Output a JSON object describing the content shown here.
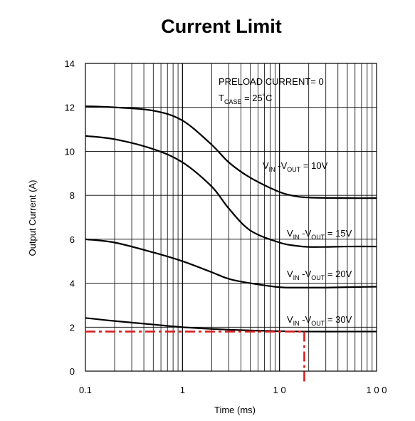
{
  "chart_data": {
    "type": "line",
    "title": "Current Limit",
    "xlabel": "Time  (ms)",
    "ylabel": "Output Current  (A)",
    "x_scale": "log",
    "xlim": [
      0.1,
      100
    ],
    "ylim": [
      0,
      14
    ],
    "grid": true,
    "x_ticks": [
      {
        "value": 0.1,
        "label": "0.1"
      },
      {
        "value": 1,
        "label": "1"
      },
      {
        "value": 10,
        "label": "1 0"
      },
      {
        "value": 100,
        "label": "1 0 0"
      }
    ],
    "y_ticks": [
      {
        "value": 0,
        "label": "0"
      },
      {
        "value": 2,
        "label": "2"
      },
      {
        "value": 4,
        "label": "4"
      },
      {
        "value": 6,
        "label": "6"
      },
      {
        "value": 8,
        "label": "8"
      },
      {
        "value": 10,
        "label": "10"
      },
      {
        "value": 12,
        "label": "12"
      },
      {
        "value": 14,
        "label": "14"
      }
    ],
    "annotation_lines": [
      {
        "main": "PRELOAD CURRENT= 0"
      },
      {
        "main": "T",
        "sub": "CASE",
        "rest": " = 25˚C"
      }
    ],
    "series": [
      {
        "label": {
          "v": "V",
          "sub1": "IN",
          "mid": " -V",
          "sub2": "OUT",
          "rest": "  = 10V"
        },
        "x": [
          0.1,
          0.2,
          0.5,
          1,
          2,
          3,
          5,
          10,
          15,
          20,
          30,
          50,
          100
        ],
        "y": [
          12.05,
          12.0,
          11.85,
          11.4,
          10.3,
          9.5,
          8.8,
          8.15,
          7.95,
          7.9,
          7.88,
          7.87,
          7.87
        ]
      },
      {
        "label": {
          "v": "V",
          "sub1": "IN",
          "mid": " -V",
          "sub2": "OUT",
          "rest": "  = 15V"
        },
        "x": [
          0.1,
          0.2,
          0.5,
          1,
          2,
          3,
          5,
          10,
          15,
          20,
          30,
          50,
          100
        ],
        "y": [
          10.7,
          10.55,
          10.1,
          9.5,
          8.4,
          7.4,
          6.4,
          5.85,
          5.7,
          5.65,
          5.65,
          5.67,
          5.67
        ]
      },
      {
        "label": {
          "v": "V",
          "sub1": "IN",
          "mid": " -V",
          "sub2": "OUT",
          "rest": "  = 20V"
        },
        "x": [
          0.1,
          0.2,
          0.5,
          1,
          2,
          3,
          5,
          10,
          15,
          20,
          30,
          50,
          100
        ],
        "y": [
          6.0,
          5.85,
          5.4,
          5.0,
          4.5,
          4.2,
          4.0,
          3.82,
          3.8,
          3.8,
          3.8,
          3.82,
          3.84
        ]
      },
      {
        "label": {
          "v": "V",
          "sub1": "IN",
          "mid": " -V",
          "sub2": "OUT",
          "rest": "  = 30V"
        },
        "x": [
          0.1,
          0.2,
          0.5,
          1,
          2,
          5,
          10,
          20,
          50,
          100
        ],
        "y": [
          2.42,
          2.28,
          2.12,
          2.0,
          1.92,
          1.85,
          1.82,
          1.8,
          1.8,
          1.8
        ]
      }
    ],
    "reference_lines": [
      {
        "orientation": "horizontal",
        "y": 1.8,
        "x_from": 0.1,
        "x_to": 18,
        "color": "#d92020",
        "style": "dash-dot"
      },
      {
        "orientation": "vertical",
        "x": 18,
        "y_from": 1.8,
        "y_to": -0.5,
        "color": "#d92020",
        "style": "dash-dot"
      }
    ]
  }
}
